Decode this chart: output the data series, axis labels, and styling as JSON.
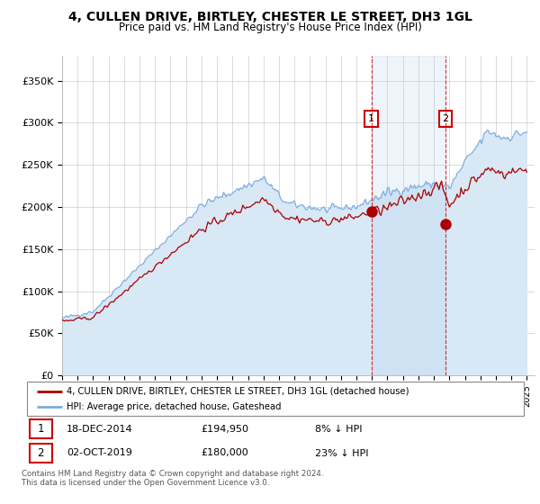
{
  "title": "4, CULLEN DRIVE, BIRTLEY, CHESTER LE STREET, DH3 1GL",
  "subtitle": "Price paid vs. HM Land Registry's House Price Index (HPI)",
  "legend_line1": "4, CULLEN DRIVE, BIRTLEY, CHESTER LE STREET, DH3 1GL (detached house)",
  "legend_line2": "HPI: Average price, detached house, Gateshead",
  "annotation1_label": "1",
  "annotation1_date": "18-DEC-2014",
  "annotation1_price": "£194,950",
  "annotation1_hpi": "8% ↓ HPI",
  "annotation2_label": "2",
  "annotation2_date": "02-OCT-2019",
  "annotation2_price": "£180,000",
  "annotation2_hpi": "23% ↓ HPI",
  "footnote": "Contains HM Land Registry data © Crown copyright and database right 2024.\nThis data is licensed under the Open Government Licence v3.0.",
  "price_color": "#aa0000",
  "hpi_color": "#7aace0",
  "hpi_fill_color": "#d8e8f5",
  "annotation_box_color": "#cc0000",
  "ylim": [
    0,
    380000
  ],
  "yticks": [
    0,
    50000,
    100000,
    150000,
    200000,
    250000,
    300000,
    350000
  ],
  "ytick_labels": [
    "£0",
    "£50K",
    "£100K",
    "£150K",
    "£200K",
    "£250K",
    "£300K",
    "£350K"
  ],
  "sale1_year": 2014.96,
  "sale1_price": 194950,
  "sale2_year": 2019.75,
  "sale2_price": 180000,
  "xmin": 1995,
  "xmax": 2025.5
}
